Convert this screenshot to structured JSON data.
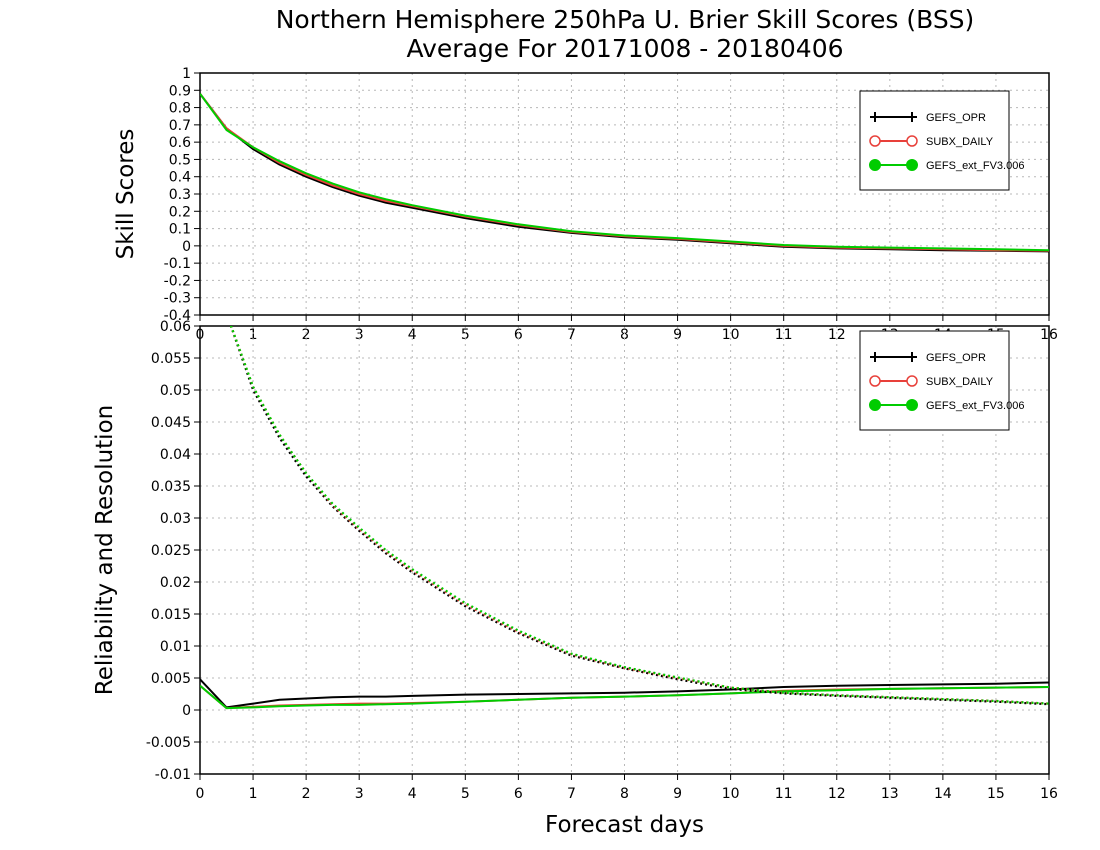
{
  "title_line1": "Northern Hemisphere 250hPa U. Brier Skill Scores (BSS)",
  "title_line2": "Average For 20171008 - 20180406",
  "colors": {
    "GEFS_OPR": "#000000",
    "SUBX_DAILY": "#e8403a",
    "GEFS_ext_FV3.006": "#00cc00"
  },
  "chart_data": [
    {
      "type": "line",
      "ylabel": "Skill Scores",
      "xlabel": "",
      "xlim": [
        0,
        16
      ],
      "ylim": [
        -0.4,
        1
      ],
      "xticks": [
        "0",
        "1",
        "2",
        "3",
        "4",
        "5",
        "6",
        "7",
        "8",
        "9",
        "10",
        "11",
        "12",
        "13",
        "14",
        "15",
        "16"
      ],
      "yticks": [
        "-0.4",
        "-0.3",
        "-0.2",
        "-0.1",
        "0",
        "0.1",
        "0.2",
        "0.3",
        "0.4",
        "0.5",
        "0.6",
        "0.7",
        "0.8",
        "0.9",
        "1"
      ],
      "legend": [
        "GEFS_OPR",
        "SUBX_DAILY",
        "GEFS_ext_FV3.006"
      ],
      "legend_position": "top-right",
      "grid": true,
      "x": [
        0,
        0.5,
        1,
        1.5,
        2,
        2.5,
        3,
        3.5,
        4,
        5,
        6,
        7,
        8,
        9,
        10,
        11,
        12,
        13,
        14,
        15,
        16
      ],
      "series": [
        {
          "name": "GEFS_OPR",
          "style": "solid",
          "values": [
            0.88,
            0.68,
            0.56,
            0.47,
            0.4,
            0.34,
            0.29,
            0.25,
            0.22,
            0.16,
            0.11,
            0.075,
            0.05,
            0.035,
            0.015,
            -0.005,
            -0.015,
            -0.02,
            -0.025,
            -0.028,
            -0.032
          ]
        },
        {
          "name": "SUBX_DAILY",
          "style": "solid",
          "values": [
            0.88,
            0.68,
            0.57,
            0.48,
            0.41,
            0.35,
            0.3,
            0.26,
            0.23,
            0.17,
            0.12,
            0.08,
            0.055,
            0.04,
            0.02,
            0.0,
            -0.01,
            -0.015,
            -0.02,
            -0.025,
            -0.028
          ]
        },
        {
          "name": "GEFS_ext_FV3.006",
          "style": "solid",
          "values": [
            0.88,
            0.67,
            0.57,
            0.49,
            0.42,
            0.36,
            0.31,
            0.27,
            0.235,
            0.175,
            0.125,
            0.085,
            0.06,
            0.045,
            0.025,
            0.005,
            -0.005,
            -0.01,
            -0.015,
            -0.02,
            -0.025
          ]
        }
      ]
    },
    {
      "type": "line",
      "ylabel": "Reliability and Resolution",
      "xlabel": "Forecast days",
      "xlim": [
        0,
        16
      ],
      "ylim": [
        -0.01,
        0.06
      ],
      "xticks": [
        "0",
        "1",
        "2",
        "3",
        "4",
        "5",
        "6",
        "7",
        "8",
        "9",
        "10",
        "11",
        "12",
        "13",
        "14",
        "15",
        "16"
      ],
      "yticks": [
        "-0.01",
        "-0.005",
        "0",
        "0.005",
        "0.01",
        "0.015",
        "0.02",
        "0.025",
        "0.03",
        "0.035",
        "0.04",
        "0.045",
        "0.05",
        "0.055",
        "0.06"
      ],
      "legend": [
        "GEFS_OPR",
        "SUBX_DAILY",
        "GEFS_ext_FV3.006"
      ],
      "legend_position": "top-right",
      "grid": true,
      "x": [
        0,
        0.5,
        1,
        1.5,
        2,
        2.5,
        3,
        3.5,
        4,
        5,
        6,
        7,
        8,
        9,
        10,
        11,
        12,
        13,
        14,
        15,
        16
      ],
      "series": [
        {
          "name": "GEFS_OPR reliability",
          "style": "solid",
          "values": [
            0.0048,
            0.0004,
            0.001,
            0.0016,
            0.0018,
            0.002,
            0.0021,
            0.0021,
            0.0022,
            0.0024,
            0.0025,
            0.0026,
            0.0027,
            0.0029,
            0.0032,
            0.0036,
            0.0038,
            0.0039,
            0.004,
            0.0041,
            0.0043
          ]
        },
        {
          "name": "SUBX_DAILY reliability",
          "style": "solid",
          "values": [
            0.0038,
            0.0003,
            0.0005,
            0.0007,
            0.0008,
            0.0009,
            0.001,
            0.001,
            0.0011,
            0.0013,
            0.0016,
            0.0019,
            0.0021,
            0.0023,
            0.0026,
            0.003,
            0.0032,
            0.0033,
            0.0034,
            0.0035,
            0.0036
          ]
        },
        {
          "name": "GEFS_ext_FV3.006 reliability",
          "style": "solid",
          "values": [
            0.0038,
            0.0003,
            0.0004,
            0.0006,
            0.0007,
            0.0008,
            0.0008,
            0.0009,
            0.001,
            0.0013,
            0.0016,
            0.0019,
            0.0021,
            0.0023,
            0.0026,
            0.0029,
            0.0031,
            0.0033,
            0.0034,
            0.0035,
            0.0036
          ]
        },
        {
          "name": "GEFS_OPR resolution",
          "style": "dotted",
          "values": [
            0.066,
            0.062,
            0.05,
            0.0425,
            0.0365,
            0.0318,
            0.028,
            0.0245,
            0.0215,
            0.0162,
            0.012,
            0.0085,
            0.0065,
            0.0048,
            0.0033,
            0.0026,
            0.0022,
            0.0019,
            0.0016,
            0.0013,
            0.0009
          ]
        },
        {
          "name": "SUBX_DAILY resolution",
          "style": "dotted",
          "values": [
            0.066,
            0.062,
            0.0505,
            0.043,
            0.037,
            0.032,
            0.0283,
            0.0248,
            0.0218,
            0.0165,
            0.0122,
            0.0087,
            0.0066,
            0.005,
            0.0035,
            0.0027,
            0.0023,
            0.002,
            0.0017,
            0.0014,
            0.001
          ]
        },
        {
          "name": "GEFS_ext_FV3.006 resolution",
          "style": "dotted",
          "values": [
            0.066,
            0.062,
            0.0505,
            0.043,
            0.037,
            0.0322,
            0.0285,
            0.025,
            0.022,
            0.0167,
            0.0124,
            0.0088,
            0.0067,
            0.0051,
            0.0035,
            0.0027,
            0.0023,
            0.002,
            0.0017,
            0.0014,
            0.001
          ]
        }
      ]
    }
  ]
}
